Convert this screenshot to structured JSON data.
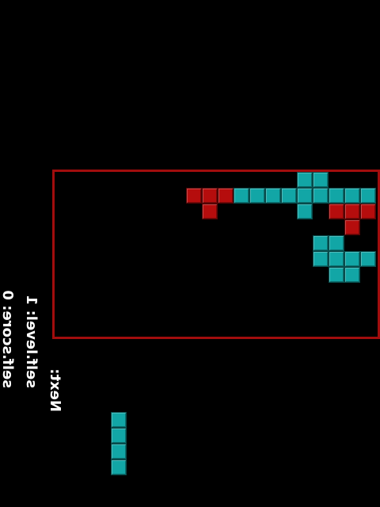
{
  "hud": {
    "score": "self.score: 0",
    "level": "self.level: 1",
    "next": "Next:"
  },
  "colors": {
    "board_border": "#a10d0d",
    "red_block": "#b50d0d",
    "teal_block": "#12a6a6",
    "background": "#000000"
  },
  "board": {
    "cols": 20,
    "rows": 10,
    "cells": [
      {
        "c": 15,
        "r": 0,
        "color": "teal"
      },
      {
        "c": 16,
        "r": 0,
        "color": "teal"
      },
      {
        "c": 8,
        "r": 1,
        "color": "red"
      },
      {
        "c": 9,
        "r": 1,
        "color": "red"
      },
      {
        "c": 10,
        "r": 1,
        "color": "red"
      },
      {
        "c": 11,
        "r": 1,
        "color": "teal"
      },
      {
        "c": 12,
        "r": 1,
        "color": "teal"
      },
      {
        "c": 13,
        "r": 1,
        "color": "teal"
      },
      {
        "c": 14,
        "r": 1,
        "color": "teal"
      },
      {
        "c": 15,
        "r": 1,
        "color": "teal"
      },
      {
        "c": 16,
        "r": 1,
        "color": "teal"
      },
      {
        "c": 17,
        "r": 1,
        "color": "teal"
      },
      {
        "c": 18,
        "r": 1,
        "color": "teal"
      },
      {
        "c": 19,
        "r": 1,
        "color": "teal"
      },
      {
        "c": 9,
        "r": 2,
        "color": "red"
      },
      {
        "c": 15,
        "r": 2,
        "color": "teal"
      },
      {
        "c": 17,
        "r": 2,
        "color": "red"
      },
      {
        "c": 18,
        "r": 2,
        "color": "red"
      },
      {
        "c": 19,
        "r": 2,
        "color": "red"
      },
      {
        "c": 18,
        "r": 3,
        "color": "red"
      },
      {
        "c": 16,
        "r": 4,
        "color": "teal"
      },
      {
        "c": 17,
        "r": 4,
        "color": "teal"
      },
      {
        "c": 16,
        "r": 5,
        "color": "teal"
      },
      {
        "c": 17,
        "r": 5,
        "color": "teal"
      },
      {
        "c": 18,
        "r": 5,
        "color": "teal"
      },
      {
        "c": 19,
        "r": 5,
        "color": "teal"
      },
      {
        "c": 17,
        "r": 6,
        "color": "teal"
      },
      {
        "c": 18,
        "r": 6,
        "color": "teal"
      }
    ]
  },
  "next_piece": {
    "color": "teal",
    "cells": [
      {
        "c": 0,
        "r": 0
      },
      {
        "c": 0,
        "r": 1
      },
      {
        "c": 0,
        "r": 2
      },
      {
        "c": 0,
        "r": 3
      }
    ]
  }
}
